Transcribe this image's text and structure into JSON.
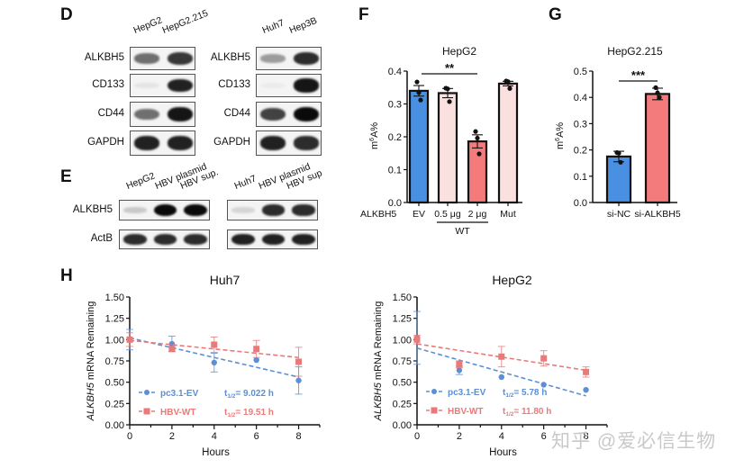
{
  "panels": {
    "D": {
      "letter": "D",
      "blots": [
        {
          "lanes": [
            "HepG2",
            "HepG2.215"
          ],
          "rows": [
            {
              "label": "ALKBH5",
              "intensities": [
                0.55,
                0.8
              ]
            },
            {
              "label": "CD133",
              "intensities": [
                0.03,
                0.9
              ]
            },
            {
              "label": "CD44",
              "intensities": [
                0.55,
                0.95
              ]
            },
            {
              "label": "GAPDH",
              "intensities": [
                0.9,
                0.9
              ]
            }
          ]
        },
        {
          "lanes": [
            "Huh7",
            "Hep3B"
          ],
          "rows": [
            {
              "label": "ALKBH5",
              "intensities": [
                0.35,
                0.85
              ]
            },
            {
              "label": "CD133",
              "intensities": [
                0.0,
                0.95
              ]
            },
            {
              "label": "CD44",
              "intensities": [
                0.75,
                1.0
              ]
            },
            {
              "label": "GAPDH",
              "intensities": [
                0.9,
                0.85
              ]
            }
          ]
        }
      ]
    },
    "E": {
      "letter": "E",
      "blots": [
        {
          "lanes": [
            "HepG2",
            "HBV plasmid",
            "HBV sup."
          ],
          "rows": [
            {
              "label": "ALKBH5",
              "intensities": [
                0.15,
                1.0,
                1.0
              ]
            },
            {
              "label": "ActB",
              "intensities": [
                0.85,
                0.85,
                0.85
              ]
            }
          ]
        },
        {
          "lanes": [
            "Huh7",
            "HBV plasmid",
            "HBV sup"
          ],
          "rows": [
            {
              "label": "ALKBH5",
              "intensities": [
                0.1,
                0.85,
                0.85
              ]
            },
            {
              "label": "ActB",
              "intensities": [
                0.9,
                0.9,
                0.9
              ]
            }
          ]
        }
      ]
    },
    "F": {
      "letter": "F"
    },
    "G": {
      "letter": "G"
    },
    "H": {
      "letter": "H"
    }
  },
  "chart_data": [
    {
      "id": "F",
      "type": "bar",
      "title": "HepG2",
      "ylabel": "m6A%",
      "ylabel_main": "m",
      "ylabel_sup": "6",
      "ylabel_rest": "A%",
      "row_label": "ALKBH5",
      "categories": [
        "EV",
        "0.5 μg",
        "2 μg",
        "Mut"
      ],
      "group_label": "WT",
      "group_span": [
        "0.5 μg",
        "2 μg"
      ],
      "values": [
        0.34,
        0.333,
        0.186,
        0.362
      ],
      "errors": [
        0.016,
        0.014,
        0.02,
        0.007
      ],
      "points": [
        [
          0.367,
          0.335,
          0.312
        ],
        [
          0.348,
          0.346,
          0.307
        ],
        [
          0.216,
          0.196,
          0.148
        ],
        [
          0.37,
          0.368,
          0.347
        ]
      ],
      "colors": [
        "#4a90e2",
        "#fbe0e0",
        "#f37b7b",
        "#fbe0e0"
      ],
      "ylim": [
        0,
        0.4
      ],
      "yticks": [
        "0.0",
        "0.1",
        "0.2",
        "0.3",
        "0.4"
      ],
      "significance": {
        "label": "**",
        "from": "EV",
        "to": "2 μg"
      }
    },
    {
      "id": "G",
      "type": "bar",
      "title": "HepG2.215",
      "ylabel": "m6A%",
      "ylabel_main": "m",
      "ylabel_sup": "6",
      "ylabel_rest": "A%",
      "categories": [
        "si-NC",
        "si-ALKBH5"
      ],
      "values": [
        0.175,
        0.413
      ],
      "errors": [
        0.02,
        0.022
      ],
      "points": [
        [
          0.19,
          0.188,
          0.153
        ],
        [
          0.437,
          0.417,
          0.4
        ]
      ],
      "colors": [
        "#4a90e2",
        "#f37b7b"
      ],
      "ylim": [
        0,
        0.5
      ],
      "yticks": [
        "0.0",
        "0.1",
        "0.2",
        "0.3",
        "0.4",
        "0.5"
      ],
      "significance": {
        "label": "***",
        "from": "si-NC",
        "to": "si-ALKBH5"
      }
    },
    {
      "id": "H-Huh7",
      "type": "scatter",
      "title": "Huh7",
      "xlabel": "Hours",
      "ylabel_italic": "ALKBH5",
      "ylabel_rest": " mRNA Remaining",
      "xlim": [
        0,
        9
      ],
      "ylim": [
        0,
        1.5
      ],
      "xticks": [
        "0",
        "2",
        "4",
        "6",
        "8"
      ],
      "yticks": [
        "0.00",
        "0.25",
        "0.50",
        "0.75",
        "1.00",
        "1.25",
        "1.50"
      ],
      "series": [
        {
          "name": "pc3.1-EV",
          "halflife_label": "t",
          "halflife_sub": "1/2",
          "halflife_value": "= 9.022 h",
          "color": "#5b8fd6",
          "marker": "circle",
          "x": [
            0,
            2,
            4,
            6,
            8
          ],
          "y": [
            1.0,
            0.95,
            0.73,
            0.76,
            0.52
          ],
          "err": [
            0.12,
            0.09,
            0.11,
            0.0,
            0.16
          ],
          "fit": [
            [
              0,
              1.02
            ],
            [
              8,
              0.56
            ]
          ]
        },
        {
          "name": "HBV-WT",
          "halflife_label": "t",
          "halflife_sub": "1/2",
          "halflife_value": "= 19.51 h",
          "color": "#ea7a7a",
          "marker": "square",
          "x": [
            0,
            2,
            4,
            6,
            8
          ],
          "y": [
            1.0,
            0.89,
            0.94,
            0.89,
            0.74
          ],
          "err": [
            0.08,
            0.03,
            0.09,
            0.1,
            0.17
          ],
          "fit": [
            [
              0,
              0.99
            ],
            [
              8,
              0.79
            ]
          ]
        }
      ]
    },
    {
      "id": "H-HepG2",
      "type": "scatter",
      "title": "HepG2",
      "xlabel": "Hours",
      "ylabel_italic": "ALKBH5",
      "ylabel_rest": " mRNA Remaining",
      "xlim": [
        0,
        9
      ],
      "ylim": [
        0,
        1.5
      ],
      "xticks": [
        "0",
        "2",
        "4",
        "6",
        "8"
      ],
      "yticks": [
        "0.00",
        "0.25",
        "0.50",
        "0.75",
        "1.00",
        "1.25",
        "1.50"
      ],
      "series": [
        {
          "name": "pc3.1-EV",
          "halflife_label": "t",
          "halflife_sub": "1/2",
          "halflife_value": "= 5.78 h",
          "color": "#5b8fd6",
          "marker": "circle",
          "x": [
            0,
            2,
            4,
            6,
            8
          ],
          "y": [
            1.02,
            0.64,
            0.56,
            0.47,
            0.41
          ],
          "err": [
            0.31,
            0.05,
            0.0,
            0.0,
            0.0
          ],
          "fit": [
            [
              0,
              0.9
            ],
            [
              8,
              0.34
            ]
          ]
        },
        {
          "name": "HBV-WT",
          "halflife_label": "t",
          "halflife_sub": "1/2",
          "halflife_value": "= 11.80 h",
          "color": "#ea7a7a",
          "marker": "square",
          "x": [
            0,
            2,
            4,
            6,
            8
          ],
          "y": [
            1.0,
            0.71,
            0.8,
            0.78,
            0.62
          ],
          "err": [
            0.05,
            0.04,
            0.12,
            0.09,
            0.06
          ],
          "fit": [
            [
              0,
              0.95
            ],
            [
              8,
              0.64
            ]
          ]
        }
      ]
    }
  ],
  "watermark": "知乎 @爱必信生物"
}
